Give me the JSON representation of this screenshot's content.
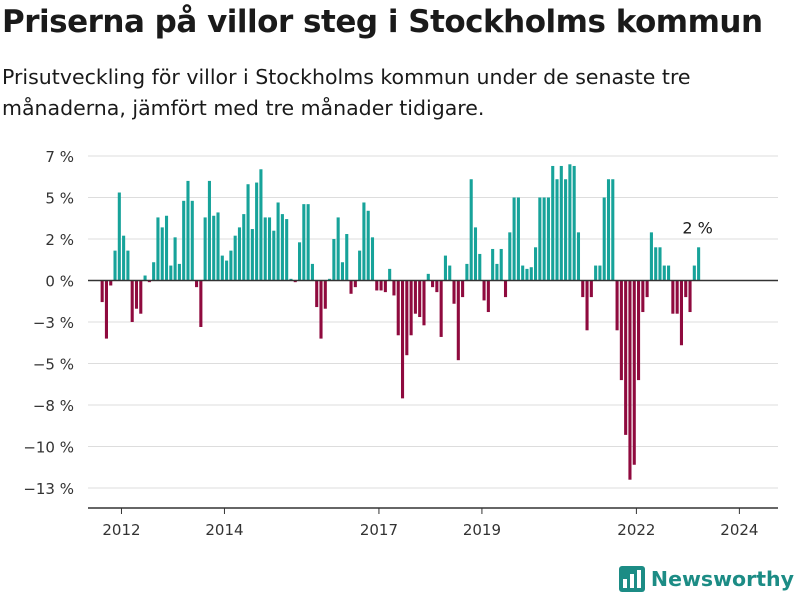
{
  "header": {
    "title": "Priserna på villor steg i Stockholms kommun",
    "subtitle": "Prisutveckling för villor i Stockholms kommun under de senaste tre månaderna, jämfört med tre månader tidigare."
  },
  "brand": {
    "name": "Newsworthy",
    "icon": "bar-chart-logo-icon",
    "color": "#1c8c85"
  },
  "colors": {
    "positive": "#17a39a",
    "negative": "#8f0a3e",
    "grid": "#dddddd",
    "axis": "#333333",
    "text": "#333333"
  },
  "chart_data": {
    "type": "bar",
    "title": "Priserna på villor steg i Stockholms kommun",
    "subtitle": "Prisutveckling för villor i Stockholms kommun under de senaste tre månaderna, jämfört med tre månader tidigare.",
    "xlabel": "",
    "ylabel": "",
    "yunit": "%",
    "x_tick_labels": [
      "2012",
      "2014",
      "2017",
      "2019",
      "2022",
      "2024"
    ],
    "x_tick_years": [
      2012,
      2014,
      2017,
      2019,
      2022,
      2024
    ],
    "y_tick_labels": [
      "7 %",
      "5 %",
      "2 %",
      "0 %",
      "−3 %",
      "−5 %",
      "−8 %",
      "−10 %",
      "−13 %"
    ],
    "y_tick_values": [
      7.5,
      5,
      2.5,
      0,
      -2.5,
      -5,
      -7.5,
      -10,
      -12.5
    ],
    "ylim": [
      -13.5,
      8
    ],
    "xlim": [
      2011.35,
      2024.75
    ],
    "grid": true,
    "legend": "none",
    "start_month": "2011-08",
    "frequency": "monthly",
    "annotation": {
      "text": "2 %",
      "target": "last-bar"
    },
    "values": [
      -1.3,
      -3.5,
      -0.3,
      1.8,
      5.3,
      2.7,
      1.8,
      -2.5,
      -1.7,
      -2.0,
      0.3,
      -0.1,
      1.1,
      3.8,
      3.2,
      3.9,
      0.9,
      2.6,
      1.0,
      4.8,
      6.0,
      4.8,
      -0.4,
      -2.8,
      3.8,
      6.0,
      3.9,
      4.1,
      1.5,
      1.2,
      1.8,
      2.7,
      3.2,
      4.0,
      5.8,
      3.1,
      5.9,
      6.7,
      3.8,
      3.8,
      3.0,
      4.7,
      4.0,
      3.7,
      0.1,
      -0.1,
      2.3,
      4.6,
      4.6,
      1.0,
      -1.6,
      -3.5,
      -1.7,
      0.1,
      2.5,
      3.8,
      1.1,
      2.8,
      -0.8,
      -0.4,
      1.8,
      4.7,
      4.2,
      2.6,
      -0.6,
      -0.6,
      -0.7,
      0.7,
      -0.9,
      -3.3,
      -7.1,
      -4.5,
      -3.3,
      -2.0,
      -2.2,
      -2.7,
      0.4,
      -0.4,
      -0.7,
      -3.4,
      1.5,
      0.9,
      -1.4,
      -4.8,
      -1.0,
      1.0,
      6.1,
      3.2,
      1.6,
      -1.2,
      -1.9,
      1.9,
      1.0,
      1.9,
      -1.0,
      2.9,
      5.0,
      5.0,
      0.9,
      0.7,
      0.8,
      2.0,
      5.0,
      5.0,
      5.0,
      6.9,
      6.1,
      6.9,
      6.1,
      7.0,
      6.9,
      2.9,
      -1.0,
      -3.0,
      -1.0,
      0.9,
      0.9,
      5.0,
      6.1,
      6.1,
      -3.0,
      -6.0,
      -9.3,
      -12.0,
      -11.1,
      -6.0,
      -1.9,
      -1.0,
      2.9,
      2.0,
      2.0,
      0.9,
      0.9,
      -2.0,
      -2.0,
      -3.9,
      -1.0,
      -1.9,
      0.9,
      2.0
    ]
  }
}
